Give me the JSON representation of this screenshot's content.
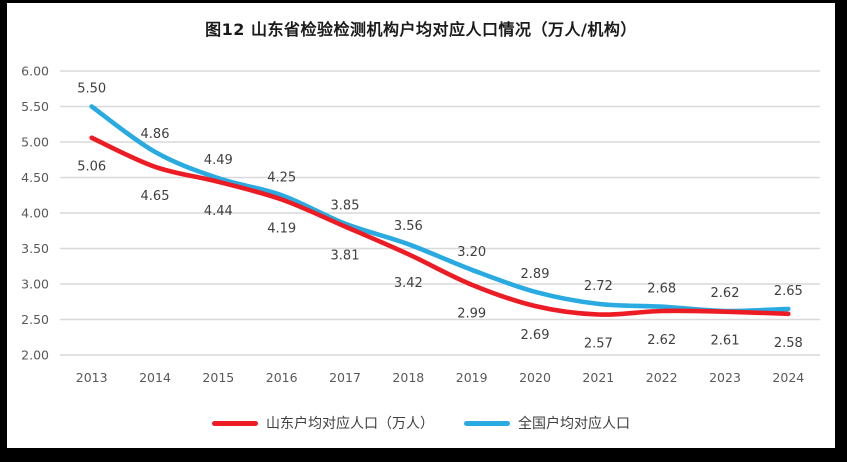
{
  "chart_data": {
    "type": "line",
    "title": "图12 山东省检验检测机构户均对应人口情况（万人/机构）",
    "categories": [
      "2013",
      "2014",
      "2015",
      "2016",
      "2017",
      "2018",
      "2019",
      "2020",
      "2021",
      "2022",
      "2023",
      "2024"
    ],
    "series": [
      {
        "id": "shandong",
        "name": "山东户均对应人口（万人）",
        "color": "#ed1c24",
        "label_position": "below",
        "values": [
          5.06,
          4.65,
          4.44,
          4.19,
          3.81,
          3.42,
          2.99,
          2.69,
          2.57,
          2.62,
          2.61,
          2.58
        ]
      },
      {
        "id": "national",
        "name": "全国户均对应人口",
        "color": "#29abe2",
        "label_position": "above",
        "values": [
          5.5,
          4.86,
          4.49,
          4.25,
          3.85,
          3.56,
          3.2,
          2.89,
          2.72,
          2.68,
          2.62,
          2.65
        ]
      }
    ],
    "xlabel": "",
    "ylabel": "",
    "ylim": [
      2.0,
      6.0
    ],
    "ytick_step": 0.5,
    "ytick_labels": [
      "6.00",
      "5.50",
      "5.00",
      "4.50",
      "4.00",
      "3.50",
      "3.00",
      "2.50",
      "2.00"
    ],
    "grid": true,
    "legend_position": "bottom",
    "colors": {
      "gridline": "#d9d9d9",
      "axis_text": "#595959",
      "data_label": "#404040",
      "title_text": "#1b1b1b",
      "frame": "#000000",
      "background": "#ffffff"
    }
  }
}
